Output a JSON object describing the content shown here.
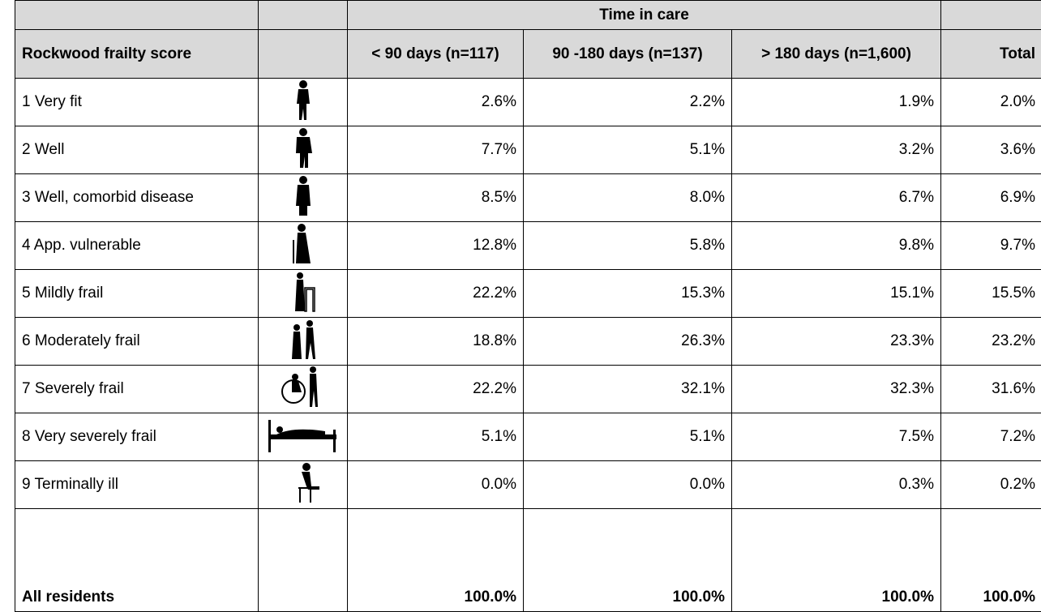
{
  "table": {
    "group_header": "Time in care",
    "columns": [
      "Rockwood frailty score",
      "< 90 days (n=117)",
      "90 -180 days (n=137)",
      "> 180 days (n=1,600)",
      "Total"
    ],
    "rows": [
      [
        "1 Very fit",
        "2.6%",
        "2.2%",
        "1.9%",
        "2.0%"
      ],
      [
        "2 Well",
        "7.7%",
        "5.1%",
        "3.2%",
        "3.6%"
      ],
      [
        "3 Well, comorbid disease",
        "8.5%",
        "8.0%",
        "6.7%",
        "6.9%"
      ],
      [
        "4 App. vulnerable",
        "12.8%",
        "5.8%",
        "9.8%",
        "9.7%"
      ],
      [
        "5 Mildly frail",
        "22.2%",
        "15.3%",
        "15.1%",
        "15.5%"
      ],
      [
        "6 Moderately frail",
        "18.8%",
        "26.3%",
        "23.3%",
        "23.2%"
      ],
      [
        "7 Severely frail",
        "22.2%",
        "32.1%",
        "32.3%",
        "31.6%"
      ],
      [
        "8 Very severely frail",
        "5.1%",
        "5.1%",
        "7.5%",
        "7.2%"
      ],
      [
        "9 Terminally ill",
        "0.0%",
        "0.0%",
        "0.3%",
        "0.2%"
      ]
    ],
    "total_row": [
      "All residents",
      "100.0%",
      "100.0%",
      "100.0%",
      "100.0%"
    ]
  }
}
